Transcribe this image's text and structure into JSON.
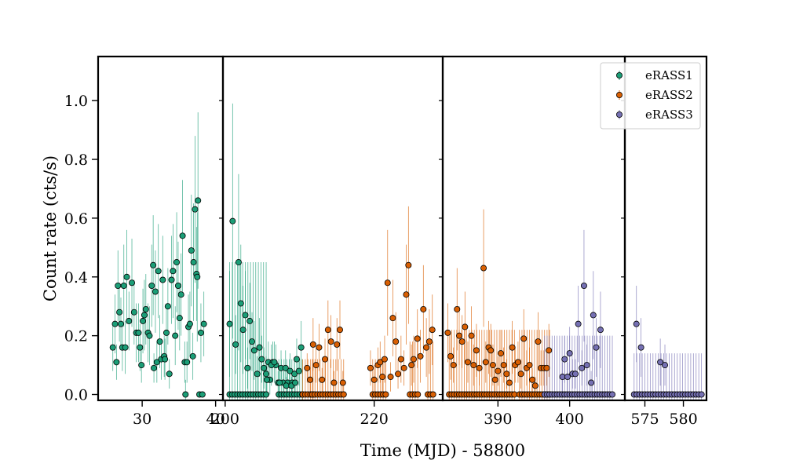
{
  "chart_data": {
    "type": "scatter",
    "title": "",
    "xlabel": "Time (MJD) - 58800",
    "ylabel": "Count rate (cts/s)",
    "ylim": [
      -0.02,
      1.15
    ],
    "yticks": [
      0.0,
      0.2,
      0.4,
      0.6,
      0.8,
      1.0
    ],
    "ytick_labels": [
      "0.0",
      "0.2",
      "0.4",
      "0.6",
      "0.8",
      "1.0"
    ],
    "legend": {
      "position": "top-right"
    },
    "panels": [
      {
        "name": "panel-1",
        "xlim": [
          24,
          41
        ],
        "xticks": [
          30,
          40
        ],
        "xtick_labels": [
          "30",
          "40"
        ]
      },
      {
        "name": "panel-2",
        "xlim": [
          199.7,
          229.2
        ],
        "xticks": [
          200,
          220
        ],
        "xtick_labels": [
          "200",
          "220"
        ]
      },
      {
        "name": "panel-3",
        "xlim": [
          382.3,
          407.7
        ],
        "xticks": [
          390,
          400
        ],
        "xtick_labels": [
          "390",
          "400"
        ]
      },
      {
        "name": "panel-4",
        "xlim": [
          572.4,
          583.0
        ],
        "xticks": [
          575,
          580
        ],
        "xtick_labels": [
          "575",
          "580"
        ]
      }
    ],
    "series": [
      {
        "name": "eRASS1",
        "color": "#1b9e77",
        "points": [
          [
            26.0,
            0.16,
            0.08
          ],
          [
            26.3,
            0.24,
            0.1
          ],
          [
            26.5,
            0.11,
            0.06
          ],
          [
            26.7,
            0.37,
            0.12
          ],
          [
            26.9,
            0.28,
            0.1
          ],
          [
            27.1,
            0.24,
            0.09
          ],
          [
            27.3,
            0.16,
            0.08
          ],
          [
            27.5,
            0.37,
            0.14
          ],
          [
            27.7,
            0.16,
            0.09
          ],
          [
            27.9,
            0.4,
            0.16
          ],
          [
            28.2,
            0.25,
            0.1
          ],
          [
            28.6,
            0.38,
            0.15
          ],
          [
            28.9,
            0.28,
            0.11
          ],
          [
            29.2,
            0.21,
            0.1
          ],
          [
            29.5,
            0.21,
            0.1
          ],
          [
            29.7,
            0.16,
            0.08
          ],
          [
            29.9,
            0.1,
            0.06
          ],
          [
            30.1,
            0.25,
            0.11
          ],
          [
            30.3,
            0.27,
            0.12
          ],
          [
            30.5,
            0.29,
            0.12
          ],
          [
            30.8,
            0.21,
            0.1
          ],
          [
            31.0,
            0.2,
            0.1
          ],
          [
            31.3,
            0.37,
            0.14
          ],
          [
            31.5,
            0.44,
            0.17
          ],
          [
            31.8,
            0.35,
            0.14
          ],
          [
            32.0,
            0.11,
            0.07
          ],
          [
            32.2,
            0.42,
            0.16
          ],
          [
            32.4,
            0.18,
            0.09
          ],
          [
            32.6,
            0.12,
            0.07
          ],
          [
            32.8,
            0.39,
            0.15
          ],
          [
            33.0,
            0.13,
            0.07
          ],
          [
            33.3,
            0.21,
            0.1
          ],
          [
            33.5,
            0.3,
            0.13
          ],
          [
            33.7,
            0.07,
            0.05
          ],
          [
            34.0,
            0.39,
            0.15
          ],
          [
            34.2,
            0.42,
            0.16
          ],
          [
            34.5,
            0.2,
            0.1
          ],
          [
            34.7,
            0.45,
            0.17
          ],
          [
            34.9,
            0.37,
            0.15
          ],
          [
            35.1,
            0.26,
            0.11
          ],
          [
            35.3,
            0.34,
            0.14
          ],
          [
            35.5,
            0.54,
            0.19
          ],
          [
            35.8,
            0.11,
            0.07
          ],
          [
            35.9,
            0.0,
            0.05
          ],
          [
            36.1,
            0.11,
            0.07
          ],
          [
            36.3,
            0.23,
            0.11
          ],
          [
            36.5,
            0.24,
            0.11
          ],
          [
            36.7,
            0.49,
            0.19
          ],
          [
            37.0,
            0.45,
            0.2
          ],
          [
            37.2,
            0.63,
            0.25
          ],
          [
            37.4,
            0.41,
            0.16
          ],
          [
            37.6,
            0.66,
            0.3
          ],
          [
            37.8,
            0.0,
            0.0
          ],
          [
            38.0,
            0.21,
            0.1
          ],
          [
            38.2,
            0.0,
            0.0
          ],
          [
            38.4,
            0.24,
            0.11
          ],
          [
            37.5,
            0.4,
            0.22
          ],
          [
            36.9,
            0.13,
            0.08
          ],
          [
            31.6,
            0.09,
            0.05
          ],
          [
            33.1,
            0.12,
            0.07
          ]
        ]
      },
      {
        "name": "eRASS2",
        "color": "#d95f02",
        "points": [
          [
            211.0,
            0.09,
            0.05
          ],
          [
            211.4,
            0.05,
            0.04
          ],
          [
            211.8,
            0.17,
            0.09
          ],
          [
            212.2,
            0.1,
            0.06
          ],
          [
            212.6,
            0.16,
            0.08
          ],
          [
            213.0,
            0.05,
            0.04
          ],
          [
            213.4,
            0.12,
            0.07
          ],
          [
            213.8,
            0.22,
            0.1
          ],
          [
            214.2,
            0.18,
            0.09
          ],
          [
            214.6,
            0.04,
            0.04
          ],
          [
            215.0,
            0.17,
            0.09
          ],
          [
            215.4,
            0.22,
            0.1
          ],
          [
            215.8,
            0.04,
            0.04
          ],
          [
            219.5,
            0.09,
            0.06
          ],
          [
            220.0,
            0.05,
            0.05
          ],
          [
            220.5,
            0.1,
            0.06
          ],
          [
            220.8,
            0.11,
            0.07
          ],
          [
            221.1,
            0.06,
            0.05
          ],
          [
            221.4,
            0.12,
            0.08
          ],
          [
            221.8,
            0.38,
            0.18
          ],
          [
            222.2,
            0.06,
            0.05
          ],
          [
            222.5,
            0.26,
            0.13
          ],
          [
            222.9,
            0.18,
            0.1
          ],
          [
            223.2,
            0.07,
            0.05
          ],
          [
            223.6,
            0.12,
            0.08
          ],
          [
            224.0,
            0.09,
            0.06
          ],
          [
            224.3,
            0.34,
            0.17
          ],
          [
            224.6,
            0.44,
            0.2
          ],
          [
            225.0,
            0.1,
            0.07
          ],
          [
            225.3,
            0.12,
            0.08
          ],
          [
            225.8,
            0.19,
            0.1
          ],
          [
            226.2,
            0.13,
            0.09
          ],
          [
            226.6,
            0.29,
            0.15
          ],
          [
            227.0,
            0.16,
            0.1
          ],
          [
            227.4,
            0.18,
            0.11
          ],
          [
            227.8,
            0.22,
            0.12
          ],
          [
            383.0,
            0.21,
            0.1
          ],
          [
            383.4,
            0.13,
            0.08
          ],
          [
            383.8,
            0.1,
            0.06
          ],
          [
            384.3,
            0.29,
            0.14
          ],
          [
            384.6,
            0.2,
            0.1
          ],
          [
            385.0,
            0.18,
            0.09
          ],
          [
            385.4,
            0.23,
            0.12
          ],
          [
            385.8,
            0.11,
            0.07
          ],
          [
            386.3,
            0.2,
            0.1
          ],
          [
            386.6,
            0.1,
            0.07
          ],
          [
            387.0,
            0.15,
            0.09
          ],
          [
            387.4,
            0.09,
            0.06
          ],
          [
            388.0,
            0.43,
            0.2
          ],
          [
            388.3,
            0.11,
            0.07
          ],
          [
            388.7,
            0.16,
            0.09
          ],
          [
            389.0,
            0.15,
            0.09
          ],
          [
            389.3,
            0.1,
            0.07
          ],
          [
            389.6,
            0.05,
            0.04
          ],
          [
            390.0,
            0.08,
            0.05
          ],
          [
            390.4,
            0.14,
            0.08
          ],
          [
            390.8,
            0.1,
            0.06
          ],
          [
            391.2,
            0.07,
            0.05
          ],
          [
            391.6,
            0.04,
            0.04
          ],
          [
            392.0,
            0.16,
            0.09
          ],
          [
            392.4,
            0.1,
            0.06
          ],
          [
            392.8,
            0.11,
            0.07
          ],
          [
            393.2,
            0.07,
            0.05
          ],
          [
            393.6,
            0.19,
            0.1
          ],
          [
            394.0,
            0.09,
            0.06
          ],
          [
            394.4,
            0.1,
            0.06
          ],
          [
            394.8,
            0.05,
            0.04
          ],
          [
            395.2,
            0.03,
            0.03
          ],
          [
            395.6,
            0.18,
            0.1
          ],
          [
            396.0,
            0.09,
            0.06
          ],
          [
            396.4,
            0.09,
            0.06
          ],
          [
            396.8,
            0.09,
            0.06
          ],
          [
            397.1,
            0.15,
            0.09
          ]
        ]
      },
      {
        "name": "eRASS3",
        "color": "#7570b3",
        "points": [
          [
            399.0,
            0.06,
            0.05
          ],
          [
            399.3,
            0.12,
            0.08
          ],
          [
            399.7,
            0.06,
            0.05
          ],
          [
            400.0,
            0.14,
            0.09
          ],
          [
            400.4,
            0.07,
            0.05
          ],
          [
            400.8,
            0.07,
            0.05
          ],
          [
            401.2,
            0.24,
            0.13
          ],
          [
            401.7,
            0.09,
            0.06
          ],
          [
            402.0,
            0.37,
            0.19
          ],
          [
            402.4,
            0.1,
            0.07
          ],
          [
            403.0,
            0.04,
            0.04
          ],
          [
            403.3,
            0.27,
            0.15
          ],
          [
            403.7,
            0.16,
            0.1
          ],
          [
            404.3,
            0.22,
            0.13
          ],
          [
            573.9,
            0.24,
            0.13
          ],
          [
            574.5,
            0.16,
            0.1
          ],
          [
            577.0,
            0.11,
            0.08
          ],
          [
            577.6,
            0.1,
            0.07
          ]
        ]
      }
    ],
    "zero_points": {
      "eRASS1": [
        [
          200.6,
          205.8,
          0.45
        ],
        [
          207.2,
          210.5,
          0.12
        ]
      ],
      "eRASS2": [
        [
          210.4,
          212.0,
          0.12
        ],
        [
          211.7,
          215.9,
          0.12
        ],
        [
          219.8,
          221.6,
          0.12
        ],
        [
          224.8,
          226.0,
          0.18
        ],
        [
          227.2,
          228.0,
          0.18
        ],
        [
          383.2,
          392.4,
          0.22
        ],
        [
          393.0,
          397.2,
          0.22
        ]
      ],
      "eRASS3": [
        [
          396.5,
          406.0,
          0.2
        ],
        [
          573.6,
          582.4,
          0.14
        ]
      ]
    },
    "decay_points": {
      "eRASS1": [
        [
          200.6,
          0.24,
          0.18
        ],
        [
          201.0,
          0.59,
          0.4
        ],
        [
          201.4,
          0.17,
          0.1
        ],
        [
          201.8,
          0.45,
          0.3
        ],
        [
          202.1,
          0.31,
          0.2
        ],
        [
          202.4,
          0.22,
          0.15
        ],
        [
          202.7,
          0.27,
          0.15
        ],
        [
          203.0,
          0.09,
          0.07
        ],
        [
          203.3,
          0.25,
          0.13
        ],
        [
          203.6,
          0.18,
          0.1
        ],
        [
          203.9,
          0.15,
          0.1
        ],
        [
          204.3,
          0.07,
          0.06
        ],
        [
          204.6,
          0.16,
          0.1
        ],
        [
          204.9,
          0.12,
          0.08
        ],
        [
          205.2,
          0.09,
          0.07
        ],
        [
          205.5,
          0.07,
          0.06
        ],
        [
          205.8,
          0.11,
          0.07
        ],
        [
          206.0,
          0.05,
          0.05
        ],
        [
          206.4,
          0.11,
          0.07
        ],
        [
          206.8,
          0.1,
          0.07
        ],
        [
          207.1,
          0.04,
          0.04
        ],
        [
          207.5,
          0.09,
          0.06
        ],
        [
          207.8,
          0.04,
          0.04
        ],
        [
          208.1,
          0.09,
          0.06
        ],
        [
          208.4,
          0.04,
          0.04
        ],
        [
          208.7,
          0.08,
          0.06
        ],
        [
          209.0,
          0.04,
          0.04
        ],
        [
          209.3,
          0.07,
          0.05
        ],
        [
          209.6,
          0.12,
          0.07
        ],
        [
          209.9,
          0.08,
          0.05
        ],
        [
          210.2,
          0.16,
          0.09
        ],
        [
          205.6,
          0.05,
          0.05
        ],
        [
          206.2,
          0.1,
          0.07
        ],
        [
          206.6,
          0.11,
          0.07
        ],
        [
          207.3,
          0.04,
          0.04
        ],
        [
          208.2,
          0.03,
          0.03
        ],
        [
          208.9,
          0.03,
          0.03
        ],
        [
          209.4,
          0.04,
          0.04
        ]
      ]
    }
  }
}
